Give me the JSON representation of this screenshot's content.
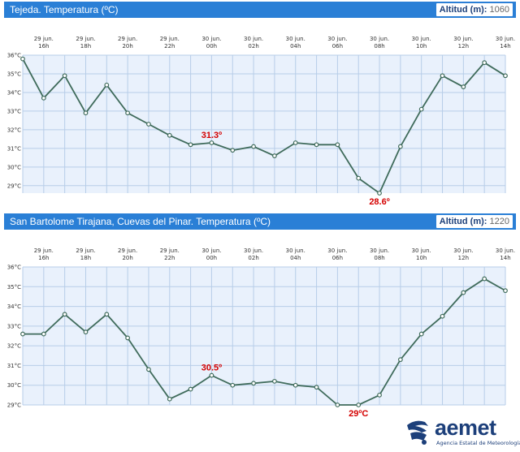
{
  "colors": {
    "header": "#2a7fd6",
    "plot_bg": "#e9f1fc",
    "grid": "#b7cde8",
    "line": "#3f6b5b",
    "annotation": "#d40000"
  },
  "x_labels": [
    [
      "29 jun.",
      "16h"
    ],
    [
      "29 jun.",
      "18h"
    ],
    [
      "29 jun.",
      "20h"
    ],
    [
      "29 jun.",
      "22h"
    ],
    [
      "30 jun.",
      "00h"
    ],
    [
      "30 jun.",
      "02h"
    ],
    [
      "30 jun.",
      "04h"
    ],
    [
      "30 jun.",
      "06h"
    ],
    [
      "30 jun.",
      "08h"
    ],
    [
      "30 jun.",
      "10h"
    ],
    [
      "30 jun.",
      "12h"
    ],
    [
      "30 jun.",
      "14h"
    ]
  ],
  "panels": [
    {
      "title": "Tejeda. Temperatura (ºC)",
      "altitude_label": "Altitud (m):",
      "altitude_value": "1060"
    },
    {
      "title": "San Bartolome Tirajana, Cuevas del Pinar. Temperatura (ºC)",
      "altitude_label": "Altitud (m):",
      "altitude_value": "1220"
    }
  ],
  "chart_data": [
    {
      "type": "line",
      "title": "Tejeda. Temperatura (ºC)",
      "unit": "°C",
      "ylim": [
        28.6,
        36
      ],
      "yticks": [
        29,
        30,
        31,
        32,
        33,
        34,
        35,
        36
      ],
      "grid": true,
      "x": [
        "15h",
        "16h",
        "17h",
        "18h",
        "19h",
        "20h",
        "21h",
        "22h",
        "23h",
        "00h",
        "01h",
        "02h",
        "03h",
        "04h",
        "05h",
        "06h",
        "07h",
        "08h",
        "09h",
        "10h",
        "11h",
        "12h",
        "13h",
        "14h"
      ],
      "values": [
        35.8,
        33.7,
        34.9,
        32.9,
        34.4,
        32.9,
        32.3,
        31.7,
        31.2,
        31.3,
        30.9,
        31.1,
        30.6,
        31.3,
        31.2,
        31.2,
        29.4,
        28.6,
        31.1,
        33.1,
        34.9,
        34.3,
        35.6,
        34.9
      ],
      "annotations": [
        {
          "text": "31.3º",
          "index": 9,
          "position": "above"
        },
        {
          "text": "28.6º",
          "index": 17,
          "position": "below"
        }
      ]
    },
    {
      "type": "line",
      "title": "San Bartolome Tirajana, Cuevas del Pinar. Temperatura (ºC)",
      "unit": "°C",
      "ylim": [
        29,
        36
      ],
      "yticks": [
        29,
        30,
        31,
        32,
        33,
        34,
        35,
        36
      ],
      "grid": true,
      "x": [
        "15h",
        "16h",
        "17h",
        "18h",
        "19h",
        "20h",
        "21h",
        "22h",
        "23h",
        "00h",
        "01h",
        "02h",
        "03h",
        "04h",
        "05h",
        "06h",
        "07h",
        "08h",
        "09h",
        "10h",
        "11h",
        "12h",
        "13h",
        "14h"
      ],
      "values": [
        32.6,
        32.6,
        33.6,
        32.7,
        33.6,
        32.4,
        30.8,
        29.3,
        29.8,
        30.5,
        30.0,
        30.1,
        30.2,
        30.0,
        29.9,
        29.0,
        29.0,
        29.5,
        31.3,
        32.6,
        33.5,
        34.7,
        35.4,
        34.8
      ],
      "annotations": [
        {
          "text": "30.5º",
          "index": 9,
          "position": "above"
        },
        {
          "text": "29ºC",
          "index": 16,
          "position": "below"
        }
      ]
    }
  ],
  "logo": {
    "name": "aemet",
    "subtitle": "Agencia Estatal de Meteorología",
    "icon": "aemet-logo-icon"
  }
}
